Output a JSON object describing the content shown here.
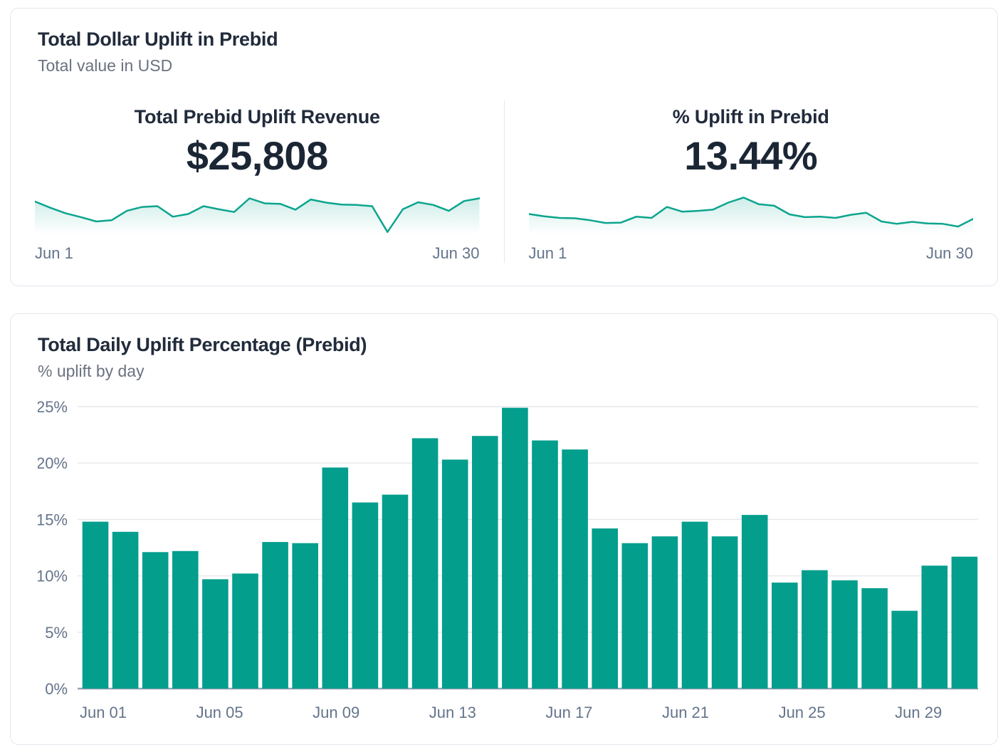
{
  "top_card": {
    "title": "Total Dollar Uplift in Prebid",
    "subtitle": "Total value in USD",
    "panels": [
      {
        "heading": "Total Prebid Uplift Revenue",
        "value": "$25,808",
        "x_start": "Jun 1",
        "x_end": "Jun 30"
      },
      {
        "heading": "% Uplift in Prebid",
        "value": "13.44%",
        "x_start": "Jun 1",
        "x_end": "Jun 30"
      }
    ]
  },
  "bottom_card": {
    "title": "Total Daily Uplift Percentage (Prebid)",
    "subtitle": "% uplift by day"
  },
  "colors": {
    "accent_teal_bar": "#049e8d",
    "accent_teal_line": "#0ca58e",
    "grid_line": "#e7e9ed",
    "axis_baseline": "#9aa2b1",
    "tick_text": "#64748b",
    "title_text": "#212b3b",
    "value_text": "#1b2635",
    "muted_text": "#6b7280",
    "card_border": "#e3e7ee"
  },
  "chart_data": [
    {
      "id": "revenue-sparkline",
      "type": "area",
      "title": "Total Prebid Uplift Revenue",
      "x_range": [
        "Jun 1",
        "Jun 30"
      ],
      "point_count": 30,
      "values_scale": "relative 0-100 (sparkline y-axis unlabeled in UI)",
      "values": [
        82,
        66,
        52,
        42,
        31,
        34,
        58,
        68,
        70,
        43,
        50,
        70,
        62,
        55,
        90,
        77,
        76,
        61,
        87,
        79,
        74,
        73,
        70,
        4,
        62,
        80,
        73,
        58,
        83,
        90
      ],
      "legend": "none",
      "grid": "off"
    },
    {
      "id": "percent-sparkline",
      "type": "area",
      "title": "% Uplift in Prebid",
      "x_range": [
        "Jun 1",
        "Jun 30"
      ],
      "point_count": 30,
      "values_scale": "relative 0-100 (sparkline y-axis unlabeled in UI)",
      "values": [
        50,
        44,
        40,
        39,
        34,
        27,
        28,
        43,
        40,
        68,
        56,
        58,
        61,
        79,
        92,
        75,
        71,
        49,
        42,
        43,
        40,
        48,
        53,
        31,
        25,
        30,
        26,
        25,
        18,
        38
      ],
      "legend": "none",
      "grid": "off"
    },
    {
      "id": "daily-uplift-bars",
      "type": "bar",
      "title": "Total Daily Uplift Percentage (Prebid)",
      "ylabel": "% uplift",
      "ylim": [
        0,
        25
      ],
      "ytick_labels": [
        "0%",
        "5%",
        "10%",
        "15%",
        "20%",
        "25%"
      ],
      "grid": "horizontal",
      "legend": "none",
      "categories": [
        "Jun 01",
        "Jun 02",
        "Jun 03",
        "Jun 04",
        "Jun 05",
        "Jun 06",
        "Jun 07",
        "Jun 08",
        "Jun 09",
        "Jun 10",
        "Jun 11",
        "Jun 12",
        "Jun 13",
        "Jun 14",
        "Jun 15",
        "Jun 16",
        "Jun 17",
        "Jun 18",
        "Jun 19",
        "Jun 20",
        "Jun 21",
        "Jun 22",
        "Jun 23",
        "Jun 24",
        "Jun 25",
        "Jun 26",
        "Jun 27",
        "Jun 28",
        "Jun 29",
        "Jun 30"
      ],
      "values": [
        14.8,
        13.9,
        12.1,
        12.2,
        9.7,
        10.2,
        13.0,
        12.9,
        19.6,
        16.5,
        17.2,
        22.2,
        20.3,
        22.4,
        24.9,
        22.0,
        21.2,
        14.2,
        12.9,
        13.5,
        14.8,
        13.5,
        15.4,
        9.4,
        10.5,
        9.6,
        8.9,
        6.9,
        10.9,
        11.7
      ],
      "x_axis_labels": [
        "Jun 01",
        "Jun 05",
        "Jun 09",
        "Jun 13",
        "Jun 17",
        "Jun 21",
        "Jun 25",
        "Jun 29"
      ],
      "x_label_indices": [
        0,
        4,
        8,
        12,
        16,
        20,
        24,
        28
      ]
    }
  ]
}
